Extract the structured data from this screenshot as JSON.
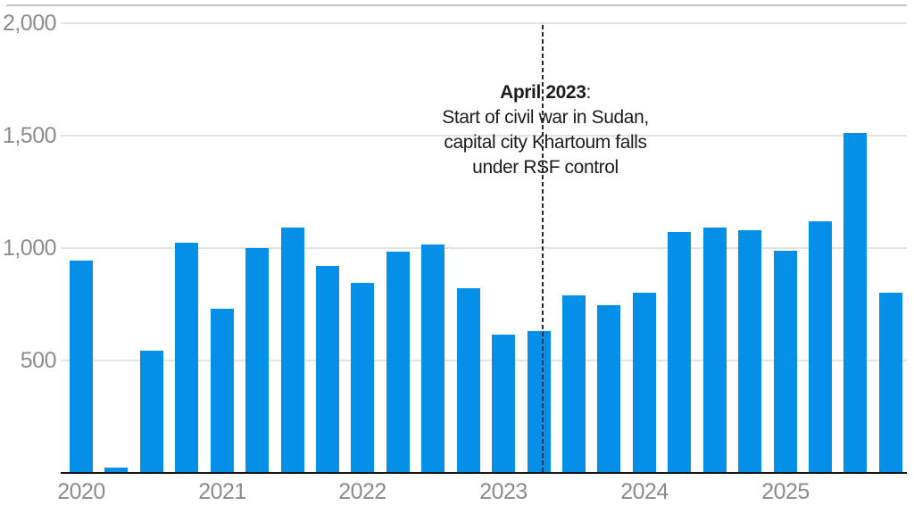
{
  "chart_data": {
    "type": "bar",
    "title": "",
    "xlabel": "",
    "ylabel": "",
    "categories": [
      "2020 Q1",
      "2020 Q2",
      "2020 Q3",
      "2020 Q4",
      "2021 Q1",
      "2021 Q2",
      "2021 Q3",
      "2021 Q4",
      "2022 Q1",
      "2022 Q2",
      "2022 Q3",
      "2022 Q4",
      "2023 Q1",
      "2023 Q2",
      "2023 Q3",
      "2023 Q4",
      "2024 Q1",
      "2024 Q2",
      "2024 Q3",
      "2024 Q4",
      "2025 Q1",
      "2025 Q2",
      "2025 Q3",
      "2025 Q4"
    ],
    "values": [
      945,
      25,
      545,
      1025,
      730,
      1000,
      1090,
      920,
      845,
      985,
      1015,
      820,
      615,
      630,
      790,
      745,
      800,
      1070,
      1090,
      1080,
      990,
      1120,
      1510,
      800
    ],
    "year_ticks": [
      "2020",
      "2021",
      "2022",
      "2023",
      "2024",
      "2025"
    ],
    "yticks": [
      500,
      1000,
      1500,
      2000
    ],
    "ytick_labels": [
      "500",
      "1,000",
      "1,500",
      "2,000"
    ],
    "ylim": [
      0,
      2000
    ],
    "grid": true,
    "legend": "none",
    "bar_color": "#0490e8",
    "axis_label_color": "#8b8b8b",
    "gridline_color": "#e3e3e3",
    "annotation": {
      "marker": "dashed-vertical-line",
      "marker_position": "April 2023",
      "title_bold": "April 2023",
      "title_suffix": ":",
      "lines": [
        "Start of civil war in Sudan,",
        "capital city Khartoum falls",
        "under RSF control"
      ]
    }
  }
}
